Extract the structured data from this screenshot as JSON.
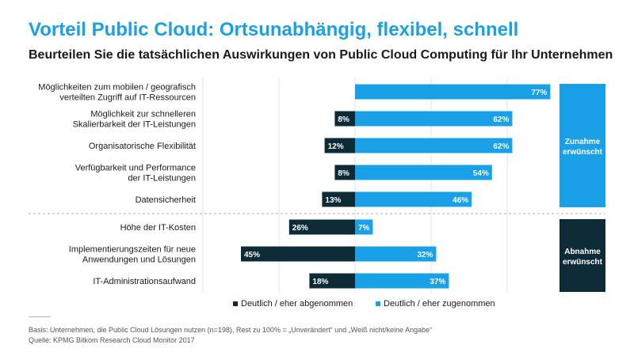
{
  "title": "Vorteil Public Cloud: Ortsunabhängig, flexibel, schnell",
  "subtitle": "Beurteilen Sie die tatsächlichen Auswirkungen von Public Cloud Computing für Ihr Unternehmen",
  "colors": {
    "decreased": "#0d2b36",
    "increased": "#1aa0e6",
    "accent": "#1aa0e6"
  },
  "chart_data": {
    "type": "bar",
    "orientation": "diverging-horizontal",
    "categories": [
      [
        "Möglichkeiten zum mobilen / geografisch",
        "verteilten Zugriff auf IT-Ressourcen"
      ],
      [
        "Möglichkeit zur schnelleren",
        "Skalierbarkeit der IT-Leistungen"
      ],
      [
        "Organisatorische Flexibilität"
      ],
      [
        "Verfügbarkeit und Performance",
        "der IT-Leistungen"
      ],
      [
        "Datensicherheit"
      ],
      [
        "Höhe der IT-Kosten"
      ],
      [
        "Implementierungszeiten für neue",
        "Anwendungen und Lösungen"
      ],
      [
        "IT-Administrationsaufwand"
      ]
    ],
    "series": [
      {
        "name": "Deutlich / eher abgenommen",
        "values": [
          null,
          8,
          12,
          8,
          13,
          26,
          45,
          18
        ]
      },
      {
        "name": "Deutlich / eher zugenommen",
        "values": [
          77,
          62,
          62,
          54,
          46,
          7,
          32,
          37
        ]
      }
    ],
    "unit": "%",
    "groups": [
      {
        "label": [
          "Zunahme",
          "erwünscht"
        ],
        "rows": [
          0,
          4
        ]
      },
      {
        "label": [
          "Abnahme",
          "erwünscht"
        ],
        "rows": [
          5,
          7
        ]
      }
    ]
  },
  "legend": {
    "decreased_label": "Deutlich / eher abgenommen",
    "increased_label": "Deutlich / eher zugenommen"
  },
  "footnote": {
    "basis": "Basis: Unternehmen, die Public Cloud Lösungen nutzen (n=198), Rest zu 100% = „Unverändert“ und „Weiß nicht/keine Angabe“",
    "source": "Quelle: KPMG Bitkom Research Cloud Monitor 2017"
  }
}
